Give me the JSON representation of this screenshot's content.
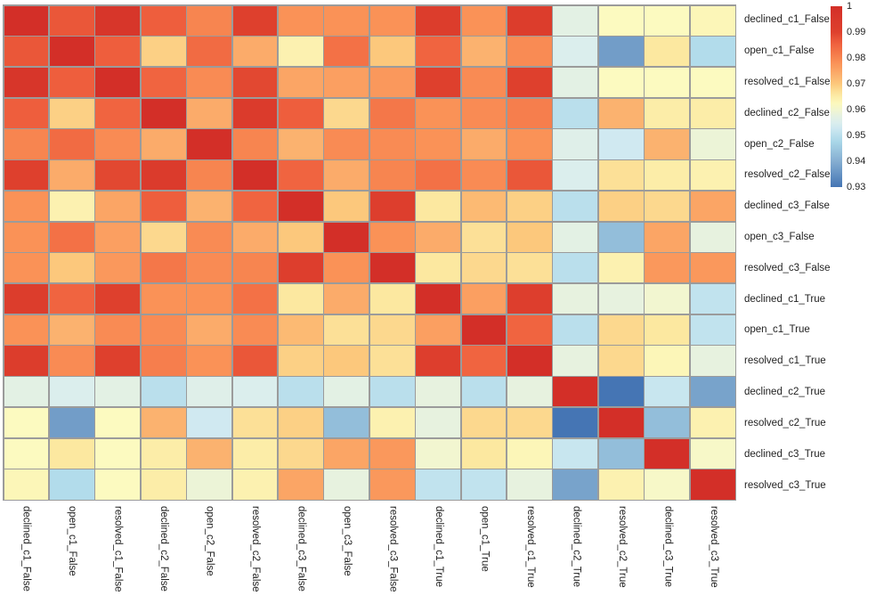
{
  "figure": {
    "background": "#ffffff",
    "grid_line_color": "#9b9b9b",
    "label_color": "#1f1f1f"
  },
  "chart_data": {
    "type": "heatmap",
    "title": "",
    "xlabel": "",
    "ylabel": "",
    "legend_position": "colorbar-right",
    "grid": true,
    "x_labels": [
      "declined_c1_False",
      "open_c1_False",
      "resolved_c1_False",
      "declined_c2_False",
      "open_c2_False",
      "resolved_c2_False",
      "declined_c3_False",
      "open_c3_False",
      "resolved_c3_False",
      "declined_c1_True",
      "open_c1_True",
      "resolved_c1_True",
      "declined_c2_True",
      "resolved_c2_True",
      "declined_c3_True",
      "resolved_c3_True"
    ],
    "y_labels": [
      "declined_c1_False",
      "open_c1_False",
      "resolved_c1_False",
      "declined_c2_False",
      "open_c2_False",
      "resolved_c2_False",
      "declined_c3_False",
      "open_c3_False",
      "resolved_c3_False",
      "declined_c1_True",
      "open_c1_True",
      "resolved_c1_True",
      "declined_c2_True",
      "resolved_c2_True",
      "declined_c3_True",
      "resolved_c3_True"
    ],
    "matrix": [
      [
        1.0,
        0.987,
        0.996,
        0.986,
        0.98,
        0.99,
        0.978,
        0.978,
        0.978,
        0.992,
        0.978,
        0.992,
        0.957,
        0.962,
        0.962,
        0.963
      ],
      [
        0.987,
        1.0,
        0.986,
        0.969,
        0.984,
        0.974,
        0.964,
        0.983,
        0.97,
        0.985,
        0.973,
        0.979,
        0.955,
        0.937,
        0.966,
        0.949
      ],
      [
        0.996,
        0.986,
        1.0,
        0.985,
        0.979,
        0.989,
        0.975,
        0.976,
        0.977,
        0.99,
        0.979,
        0.99,
        0.957,
        0.962,
        0.962,
        0.962
      ],
      [
        0.986,
        0.969,
        0.985,
        1.0,
        0.974,
        0.993,
        0.986,
        0.968,
        0.982,
        0.978,
        0.979,
        0.981,
        0.95,
        0.973,
        0.965,
        0.965
      ],
      [
        0.98,
        0.984,
        0.979,
        0.974,
        1.0,
        0.98,
        0.973,
        0.979,
        0.979,
        0.978,
        0.974,
        0.978,
        0.956,
        0.953,
        0.973,
        0.959
      ],
      [
        0.99,
        0.974,
        0.989,
        0.993,
        0.98,
        1.0,
        0.985,
        0.974,
        0.98,
        0.983,
        0.979,
        0.987,
        0.955,
        0.967,
        0.965,
        0.964
      ],
      [
        0.978,
        0.964,
        0.975,
        0.986,
        0.973,
        0.985,
        1.0,
        0.97,
        0.991,
        0.966,
        0.972,
        0.969,
        0.95,
        0.969,
        0.968,
        0.975
      ],
      [
        0.978,
        0.983,
        0.976,
        0.968,
        0.979,
        0.974,
        0.97,
        1.0,
        0.978,
        0.974,
        0.967,
        0.97,
        0.957,
        0.943,
        0.975,
        0.958
      ],
      [
        0.978,
        0.97,
        0.977,
        0.982,
        0.979,
        0.98,
        0.991,
        0.978,
        1.0,
        0.966,
        0.968,
        0.967,
        0.95,
        0.964,
        0.977,
        0.977
      ],
      [
        0.992,
        0.985,
        0.99,
        0.978,
        0.978,
        0.983,
        0.966,
        0.974,
        0.966,
        1.0,
        0.976,
        0.991,
        0.958,
        0.958,
        0.96,
        0.951
      ],
      [
        0.978,
        0.973,
        0.979,
        0.979,
        0.974,
        0.979,
        0.972,
        0.967,
        0.968,
        0.976,
        1.0,
        0.985,
        0.95,
        0.968,
        0.966,
        0.951
      ],
      [
        0.992,
        0.979,
        0.99,
        0.981,
        0.978,
        0.987,
        0.969,
        0.97,
        0.967,
        0.991,
        0.985,
        1.0,
        0.958,
        0.968,
        0.963,
        0.958
      ],
      [
        0.957,
        0.955,
        0.957,
        0.95,
        0.956,
        0.955,
        0.95,
        0.957,
        0.95,
        0.958,
        0.95,
        0.958,
        1.0,
        0.93,
        0.952,
        0.938
      ],
      [
        0.962,
        0.937,
        0.962,
        0.973,
        0.953,
        0.967,
        0.969,
        0.943,
        0.964,
        0.958,
        0.968,
        0.968,
        0.93,
        1.0,
        0.943,
        0.964
      ],
      [
        0.962,
        0.966,
        0.962,
        0.965,
        0.973,
        0.965,
        0.968,
        0.975,
        0.977,
        0.96,
        0.966,
        0.963,
        0.952,
        0.943,
        1.0,
        0.961
      ],
      [
        0.963,
        0.949,
        0.962,
        0.965,
        0.959,
        0.964,
        0.975,
        0.958,
        0.977,
        0.951,
        0.951,
        0.958,
        0.938,
        0.964,
        0.961,
        1.0
      ]
    ],
    "vmin": 0.93,
    "vmax": 1.0,
    "colormap": "RdYlBu_r",
    "colormap_anchors": [
      {
        "v": 0.93,
        "color": "#4575b4"
      },
      {
        "v": 0.94,
        "color": "#85aed1"
      },
      {
        "v": 0.948,
        "color": "#abd9e9"
      },
      {
        "v": 0.954,
        "color": "#d7ecf2"
      },
      {
        "v": 0.958,
        "color": "#e7f2df"
      },
      {
        "v": 0.962,
        "color": "#fcfac0"
      },
      {
        "v": 0.966,
        "color": "#fce8a0"
      },
      {
        "v": 0.97,
        "color": "#fcc87c"
      },
      {
        "v": 0.974,
        "color": "#fbab6a"
      },
      {
        "v": 0.978,
        "color": "#fa9257"
      },
      {
        "v": 0.982,
        "color": "#f47749"
      },
      {
        "v": 0.986,
        "color": "#ee5e3d"
      },
      {
        "v": 0.99,
        "color": "#de402d"
      },
      {
        "v": 1.0,
        "color": "#d32f28"
      }
    ],
    "colorbar": {
      "ticks": [
        "1",
        "0.99",
        "0.98",
        "0.97",
        "0.96",
        "0.95",
        "0.94",
        "0.93"
      ]
    }
  }
}
